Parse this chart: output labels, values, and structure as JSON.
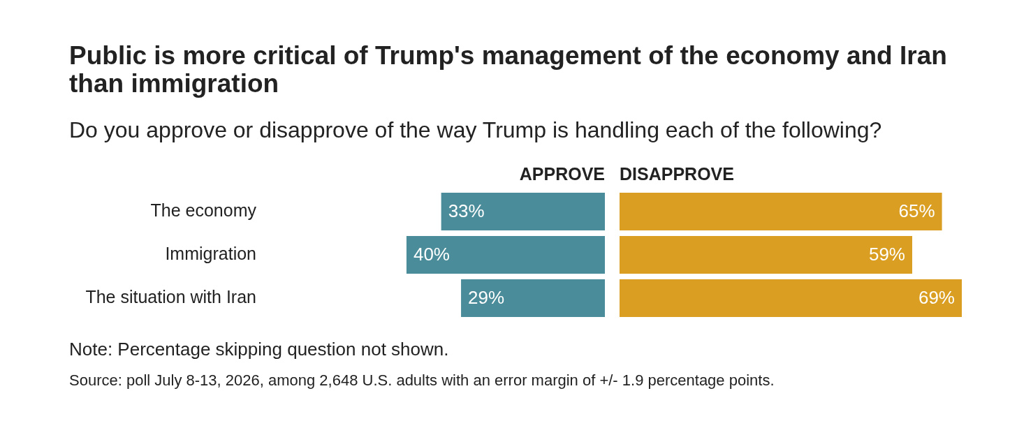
{
  "chart_data": [
    {
      "type": "bar",
      "orientation": "horizontal",
      "title": "Public is more critical of Trump's management of the economy and Iran than immigration",
      "subtitle": "Do you approve or disapprove of the way Trump is handling each of the following?",
      "categories": [
        "The economy",
        "Immigration",
        "The situation with Iran"
      ],
      "series": [
        {
          "name": "APPROVE",
          "color": "#4a8c99",
          "values": [
            33,
            40,
            29
          ],
          "value_labels": [
            "33%",
            "40%",
            "29%"
          ]
        }
      ],
      "tick_labels": "y",
      "annotations": [
        "Note: Percentage skipping question not shown.",
        "Source: poll July 8-13, 2026, among 2,648 U.S. adults with an error margin of +/- 1.9 percentage points."
      ]
    },
    {
      "type": "bar",
      "orientation": "horizontal",
      "categories": [
        null,
        null,
        null
      ],
      "series": [
        {
          "name": "DISAPPROVE",
          "color": "#d99e22",
          "values": [
            65,
            59,
            69
          ],
          "value_labels": [
            "65%",
            "59%",
            "69%"
          ]
        }
      ],
      "tick_labels": false
    }
  ]
}
